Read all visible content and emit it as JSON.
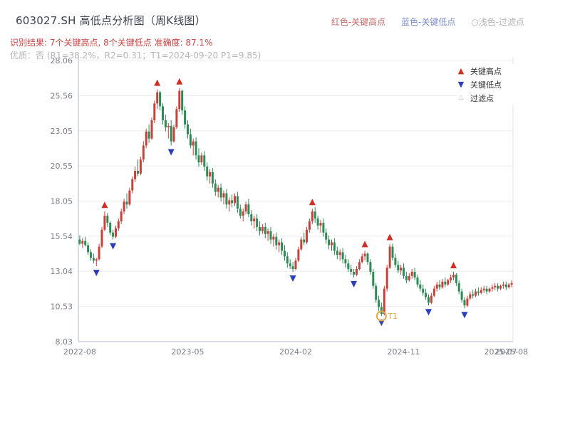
{
  "header": {
    "title": "603027.SH 高低点分析图（周K线图）",
    "legend_key": {
      "high": "红色-关键高点",
      "low": "蓝色-关键低点",
      "filtered": "○浅色-过滤点"
    },
    "recognition": "识别结果: 7个关键高点, 8个关键低点  准确度: 87.1%",
    "quality": "优质：否 (R1=38.2%，R2=0.31；T1=2024-09-20 P1=9.85)"
  },
  "colors": {
    "up": "#c5423a",
    "down": "#2e8b57",
    "marker_high": "#cf2f25",
    "marker_low": "#2b3fbb",
    "t1": "#e2a43c",
    "grid": "#ececec",
    "axis": "#b3bac8",
    "axis_light": "#dfe3ec"
  },
  "chart_data": {
    "type": "candlestick",
    "title": "603027.SH 高低点分析图（周K线图）",
    "interval": "weekly",
    "legend": {
      "high": "关键高点",
      "low": "关键低点",
      "filtered": "过滤点"
    },
    "legend_position": "top-right-inside",
    "grid": true,
    "ylim": [
      8.03,
      28.06
    ],
    "yticks": [
      8.03,
      10.53,
      13.04,
      15.54,
      18.05,
      20.55,
      23.05,
      25.56,
      28.06
    ],
    "ytick_labels": [
      "8.03",
      "10.53",
      "13.04",
      "15.54",
      "18.05",
      "20.55",
      "23.05",
      "25.56",
      "28.06"
    ],
    "xticks": [
      {
        "label": "2022-08",
        "i": 0
      },
      {
        "label": "2023-05",
        "i": 39
      },
      {
        "label": "2024-02",
        "i": 78
      },
      {
        "label": "2024-11",
        "i": 117
      },
      {
        "label": "2025-07",
        "i": 152
      },
      {
        "label": "2025-08",
        "i": 156
      }
    ],
    "candles": [
      [
        15.3,
        15.6,
        14.9,
        15.0
      ],
      [
        15.0,
        15.4,
        14.7,
        15.2
      ],
      [
        15.2,
        15.5,
        14.8,
        14.9
      ],
      [
        14.9,
        15.1,
        14.2,
        14.4
      ],
      [
        14.4,
        14.6,
        13.8,
        14.0
      ],
      [
        14.0,
        14.3,
        13.6,
        13.8
      ],
      [
        13.8,
        14.0,
        13.4,
        13.9
      ],
      [
        13.9,
        15.0,
        13.8,
        14.8
      ],
      [
        14.8,
        16.2,
        14.7,
        16.0
      ],
      [
        16.0,
        17.3,
        15.9,
        17.0
      ],
      [
        17.0,
        17.2,
        16.2,
        16.5
      ],
      [
        16.5,
        16.6,
        15.6,
        15.8
      ],
      [
        15.8,
        16.0,
        15.3,
        15.5
      ],
      [
        15.5,
        16.3,
        15.4,
        16.1
      ],
      [
        16.1,
        16.8,
        15.9,
        16.6
      ],
      [
        16.6,
        17.5,
        16.4,
        17.3
      ],
      [
        17.3,
        18.2,
        17.1,
        18.0
      ],
      [
        18.0,
        18.6,
        17.5,
        17.8
      ],
      [
        17.8,
        19.0,
        17.7,
        18.8
      ],
      [
        18.8,
        19.8,
        18.6,
        19.6
      ],
      [
        19.6,
        20.5,
        19.4,
        20.2
      ],
      [
        20.2,
        21.0,
        19.8,
        20.0
      ],
      [
        20.0,
        21.2,
        19.9,
        21.0
      ],
      [
        21.0,
        22.3,
        20.8,
        22.0
      ],
      [
        22.0,
        23.2,
        21.8,
        23.0
      ],
      [
        23.0,
        23.5,
        22.2,
        22.5
      ],
      [
        22.5,
        24.0,
        22.4,
        23.8
      ],
      [
        23.8,
        25.2,
        23.6,
        25.0
      ],
      [
        25.0,
        26.0,
        24.6,
        25.8
      ],
      [
        25.8,
        25.9,
        24.5,
        24.8
      ],
      [
        24.8,
        25.0,
        23.5,
        23.8
      ],
      [
        23.8,
        24.2,
        23.0,
        23.3
      ],
      [
        23.3,
        23.6,
        22.5,
        23.4
      ],
      [
        23.4,
        23.8,
        22.0,
        22.3
      ],
      [
        22.3,
        23.5,
        22.2,
        23.3
      ],
      [
        23.3,
        24.8,
        23.2,
        24.6
      ],
      [
        24.6,
        26.1,
        24.4,
        25.9
      ],
      [
        25.9,
        26.0,
        24.2,
        24.5
      ],
      [
        24.5,
        24.8,
        23.2,
        23.5
      ],
      [
        23.5,
        23.8,
        22.5,
        22.8
      ],
      [
        22.8,
        23.2,
        21.8,
        22.0
      ],
      [
        22.0,
        22.5,
        21.3,
        22.3
      ],
      [
        22.3,
        22.6,
        21.0,
        21.3
      ],
      [
        21.3,
        21.8,
        20.5,
        20.8
      ],
      [
        20.8,
        21.5,
        20.6,
        21.3
      ],
      [
        21.3,
        21.6,
        20.2,
        20.5
      ],
      [
        20.5,
        20.8,
        19.5,
        19.8
      ],
      [
        19.8,
        20.3,
        19.3,
        20.1
      ],
      [
        20.1,
        20.4,
        19.0,
        19.3
      ],
      [
        19.3,
        19.6,
        18.4,
        18.7
      ],
      [
        18.7,
        19.2,
        18.3,
        19.0
      ],
      [
        19.0,
        19.3,
        18.0,
        18.3
      ],
      [
        18.3,
        18.8,
        17.8,
        18.6
      ],
      [
        18.6,
        18.9,
        17.5,
        17.8
      ],
      [
        17.8,
        18.3,
        17.3,
        18.1
      ],
      [
        18.1,
        18.5,
        17.6,
        17.9
      ],
      [
        17.9,
        18.6,
        17.7,
        18.4
      ],
      [
        18.4,
        18.7,
        17.2,
        17.5
      ],
      [
        17.5,
        17.8,
        16.8,
        17.0
      ],
      [
        17.0,
        17.5,
        16.6,
        17.3
      ],
      [
        17.3,
        18.0,
        17.1,
        17.8
      ],
      [
        17.8,
        18.2,
        16.9,
        17.1
      ],
      [
        17.1,
        17.4,
        16.3,
        16.6
      ],
      [
        16.6,
        17.0,
        16.1,
        16.8
      ],
      [
        16.8,
        17.1,
        15.9,
        16.2
      ],
      [
        16.2,
        16.6,
        15.6,
        15.9
      ],
      [
        15.9,
        16.4,
        15.7,
        16.2
      ],
      [
        16.2,
        16.5,
        15.4,
        15.7
      ],
      [
        15.7,
        16.1,
        15.2,
        15.9
      ],
      [
        15.9,
        16.2,
        15.0,
        15.3
      ],
      [
        15.3,
        15.7,
        14.8,
        15.5
      ],
      [
        15.5,
        15.8,
        14.6,
        14.9
      ],
      [
        14.9,
        15.3,
        14.4,
        15.1
      ],
      [
        15.1,
        15.4,
        14.2,
        14.5
      ],
      [
        14.5,
        14.9,
        13.8,
        14.1
      ],
      [
        14.1,
        14.4,
        13.3,
        13.6
      ],
      [
        13.6,
        13.9,
        13.2,
        13.4
      ],
      [
        13.4,
        13.7,
        13.0,
        13.2
      ],
      [
        13.2,
        14.0,
        13.1,
        13.8
      ],
      [
        13.8,
        14.8,
        13.7,
        14.6
      ],
      [
        14.6,
        15.5,
        14.5,
        15.3
      ],
      [
        15.3,
        15.8,
        14.9,
        15.1
      ],
      [
        15.1,
        16.2,
        15.0,
        16.0
      ],
      [
        16.0,
        16.8,
        15.8,
        16.6
      ],
      [
        16.6,
        17.5,
        16.4,
        17.3
      ],
      [
        17.3,
        17.6,
        16.5,
        16.8
      ],
      [
        16.8,
        17.0,
        16.0,
        16.3
      ],
      [
        16.3,
        16.7,
        15.8,
        16.5
      ],
      [
        16.5,
        16.8,
        15.5,
        15.8
      ],
      [
        15.8,
        16.1,
        15.0,
        15.3
      ],
      [
        15.3,
        15.6,
        14.6,
        14.9
      ],
      [
        14.9,
        15.3,
        14.5,
        15.1
      ],
      [
        15.1,
        15.4,
        14.2,
        14.5
      ],
      [
        14.5,
        14.8,
        13.9,
        14.2
      ],
      [
        14.2,
        14.6,
        13.8,
        14.4
      ],
      [
        14.4,
        14.7,
        13.6,
        13.9
      ],
      [
        13.9,
        14.2,
        13.3,
        13.6
      ],
      [
        13.6,
        13.9,
        13.0,
        13.2
      ],
      [
        13.2,
        13.5,
        12.8,
        13.0
      ],
      [
        13.0,
        13.2,
        12.6,
        12.8
      ],
      [
        12.8,
        13.4,
        12.7,
        13.2
      ],
      [
        13.2,
        13.9,
        13.1,
        13.7
      ],
      [
        13.7,
        14.3,
        13.6,
        14.1
      ],
      [
        14.1,
        14.5,
        13.8,
        14.3
      ],
      [
        14.3,
        14.4,
        13.5,
        13.7
      ],
      [
        13.7,
        13.9,
        12.8,
        13.0
      ],
      [
        13.0,
        13.2,
        11.8,
        12.0
      ],
      [
        12.0,
        12.2,
        10.8,
        11.0
      ],
      [
        11.0,
        11.3,
        10.2,
        10.5
      ],
      [
        10.5,
        10.8,
        9.85,
        10.0
      ],
      [
        10.0,
        12.0,
        9.9,
        11.8
      ],
      [
        11.8,
        13.5,
        11.6,
        13.3
      ],
      [
        13.3,
        15.0,
        13.2,
        14.8
      ],
      [
        14.8,
        15.0,
        13.8,
        14.0
      ],
      [
        14.0,
        14.3,
        13.3,
        13.5
      ],
      [
        13.5,
        13.8,
        12.9,
        13.1
      ],
      [
        13.1,
        13.5,
        12.8,
        13.3
      ],
      [
        13.3,
        13.6,
        12.5,
        12.7
      ],
      [
        12.7,
        13.0,
        12.2,
        12.4
      ],
      [
        12.4,
        12.9,
        12.3,
        12.7
      ],
      [
        12.7,
        13.2,
        12.5,
        13.0
      ],
      [
        13.0,
        13.3,
        12.4,
        12.6
      ],
      [
        12.6,
        12.8,
        11.9,
        12.1
      ],
      [
        12.1,
        12.4,
        11.6,
        11.8
      ],
      [
        11.8,
        12.1,
        11.3,
        11.5
      ],
      [
        11.5,
        11.8,
        11.0,
        11.2
      ],
      [
        11.2,
        11.4,
        10.6,
        10.8
      ],
      [
        10.8,
        11.5,
        10.7,
        11.3
      ],
      [
        11.3,
        12.0,
        11.2,
        11.8
      ],
      [
        11.8,
        12.3,
        11.6,
        12.1
      ],
      [
        12.1,
        12.4,
        11.7,
        11.9
      ],
      [
        11.9,
        12.5,
        11.8,
        12.3
      ],
      [
        12.3,
        12.6,
        11.9,
        12.1
      ],
      [
        12.1,
        12.5,
        12.0,
        12.4
      ],
      [
        12.4,
        12.8,
        12.2,
        12.6
      ],
      [
        12.6,
        13.0,
        12.4,
        12.8
      ],
      [
        12.8,
        12.9,
        12.0,
        12.2
      ],
      [
        12.2,
        12.4,
        11.4,
        11.6
      ],
      [
        11.6,
        11.8,
        10.8,
        11.0
      ],
      [
        11.0,
        11.2,
        10.4,
        10.6
      ],
      [
        10.6,
        11.3,
        10.5,
        11.1
      ],
      [
        11.1,
        11.6,
        11.0,
        11.4
      ],
      [
        11.4,
        11.7,
        11.1,
        11.3
      ],
      [
        11.3,
        11.8,
        11.2,
        11.6
      ],
      [
        11.6,
        11.9,
        11.3,
        11.5
      ],
      [
        11.5,
        11.9,
        11.4,
        11.7
      ],
      [
        11.7,
        12.0,
        11.5,
        11.8
      ],
      [
        11.8,
        12.0,
        11.4,
        11.6
      ],
      [
        11.6,
        11.9,
        11.5,
        11.8
      ],
      [
        11.8,
        12.1,
        11.6,
        11.9
      ],
      [
        11.9,
        12.2,
        11.7,
        12.0
      ],
      [
        12.0,
        12.2,
        11.6,
        11.8
      ],
      [
        11.8,
        12.1,
        11.7,
        12.0
      ],
      [
        12.0,
        12.3,
        11.8,
        12.1
      ],
      [
        12.1,
        12.3,
        11.7,
        11.9
      ],
      [
        11.9,
        12.2,
        11.8,
        12.1
      ],
      [
        12.1,
        12.4,
        11.9,
        12.2
      ]
    ],
    "key_highs": [
      9,
      28,
      36,
      84,
      103,
      112,
      135
    ],
    "key_lows": [
      6,
      12,
      33,
      77,
      99,
      109,
      126,
      139
    ],
    "t1": {
      "index": 109,
      "label": "T1",
      "price": 9.85,
      "date": "2024-09-20"
    }
  }
}
